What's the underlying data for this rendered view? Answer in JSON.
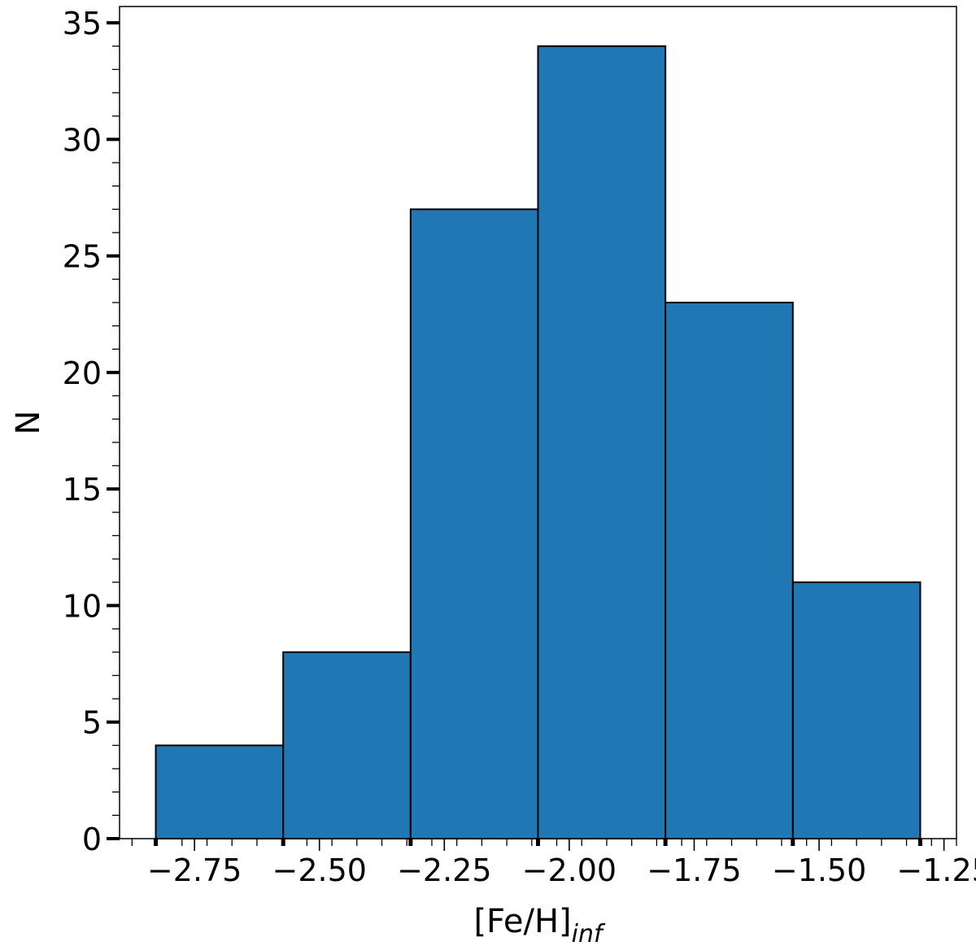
{
  "chart_data": {
    "type": "bar",
    "title": "",
    "xlabel": "[Fe/H]",
    "xlabel_subscript": "inf",
    "ylabel": "N",
    "bins": [
      {
        "x0": -2.8275,
        "x1": -2.5725,
        "count": 4
      },
      {
        "x0": -2.5725,
        "x1": -2.3175,
        "count": 8
      },
      {
        "x0": -2.3175,
        "x1": -2.0625,
        "count": 27
      },
      {
        "x0": -2.0625,
        "x1": -1.8075,
        "count": 34
      },
      {
        "x0": -1.8075,
        "x1": -1.5525,
        "count": 23
      },
      {
        "x0": -1.5525,
        "x1": -1.2975,
        "count": 11
      }
    ],
    "xlim": [
      -2.9,
      -1.225
    ],
    "ylim": [
      0,
      35.7
    ],
    "xticks": [
      -2.75,
      -2.5,
      -2.25,
      -2.0,
      -1.75,
      -1.5,
      -1.25
    ],
    "xtick_labels": [
      "−2.75",
      "−2.50",
      "−2.25",
      "−2.00",
      "−1.75",
      "−1.50",
      "−1.25"
    ],
    "yticks": [
      0,
      5,
      10,
      15,
      20,
      25,
      30,
      35
    ],
    "ytick_labels": [
      "0",
      "5",
      "10",
      "15",
      "20",
      "25",
      "30",
      "35"
    ],
    "bar_color": "#1f77b4",
    "edge_color": "#000000",
    "grid": false,
    "legend": "none"
  }
}
